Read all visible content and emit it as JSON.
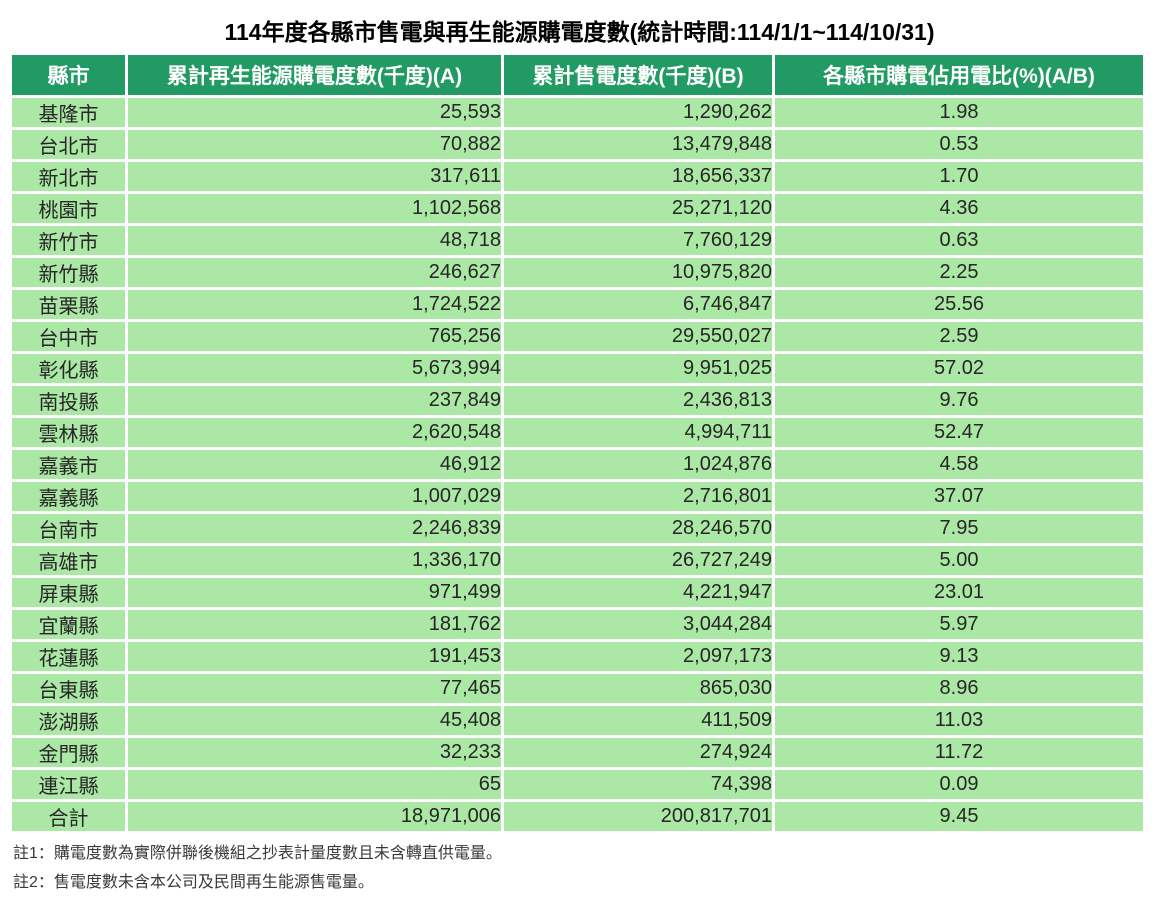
{
  "title": "114年度各縣市售電與再生能源購電度數(統計時間:114/1/1~114/10/31)",
  "table": {
    "headers": [
      "縣市",
      "累計再生能源購電度數(千度)(A)",
      "累計售電度數(千度)(B)",
      "各縣市購電佔用電比(%)(A/B)"
    ],
    "rows": [
      {
        "region": "基隆市",
        "renewable": "25,593",
        "sales": "1,290,262",
        "ratio": "1.98"
      },
      {
        "region": "台北市",
        "renewable": "70,882",
        "sales": "13,479,848",
        "ratio": "0.53"
      },
      {
        "region": "新北市",
        "renewable": "317,611",
        "sales": "18,656,337",
        "ratio": "1.70"
      },
      {
        "region": "桃園市",
        "renewable": "1,102,568",
        "sales": "25,271,120",
        "ratio": "4.36"
      },
      {
        "region": "新竹市",
        "renewable": "48,718",
        "sales": "7,760,129",
        "ratio": "0.63"
      },
      {
        "region": "新竹縣",
        "renewable": "246,627",
        "sales": "10,975,820",
        "ratio": "2.25"
      },
      {
        "region": "苗栗縣",
        "renewable": "1,724,522",
        "sales": "6,746,847",
        "ratio": "25.56"
      },
      {
        "region": "台中市",
        "renewable": "765,256",
        "sales": "29,550,027",
        "ratio": "2.59"
      },
      {
        "region": "彰化縣",
        "renewable": "5,673,994",
        "sales": "9,951,025",
        "ratio": "57.02"
      },
      {
        "region": "南投縣",
        "renewable": "237,849",
        "sales": "2,436,813",
        "ratio": "9.76"
      },
      {
        "region": "雲林縣",
        "renewable": "2,620,548",
        "sales": "4,994,711",
        "ratio": "52.47"
      },
      {
        "region": "嘉義市",
        "renewable": "46,912",
        "sales": "1,024,876",
        "ratio": "4.58"
      },
      {
        "region": "嘉義縣",
        "renewable": "1,007,029",
        "sales": "2,716,801",
        "ratio": "37.07"
      },
      {
        "region": "台南市",
        "renewable": "2,246,839",
        "sales": "28,246,570",
        "ratio": "7.95"
      },
      {
        "region": "高雄市",
        "renewable": "1,336,170",
        "sales": "26,727,249",
        "ratio": "5.00"
      },
      {
        "region": "屏東縣",
        "renewable": "971,499",
        "sales": "4,221,947",
        "ratio": "23.01"
      },
      {
        "region": "宜蘭縣",
        "renewable": "181,762",
        "sales": "3,044,284",
        "ratio": "5.97"
      },
      {
        "region": "花蓮縣",
        "renewable": "191,453",
        "sales": "2,097,173",
        "ratio": "9.13"
      },
      {
        "region": "台東縣",
        "renewable": "77,465",
        "sales": "865,030",
        "ratio": "8.96"
      },
      {
        "region": "澎湖縣",
        "renewable": "45,408",
        "sales": "411,509",
        "ratio": "11.03"
      },
      {
        "region": "金門縣",
        "renewable": "32,233",
        "sales": "274,924",
        "ratio": "11.72"
      },
      {
        "region": "連江縣",
        "renewable": "65",
        "sales": "74,398",
        "ratio": "0.09"
      }
    ],
    "total": {
      "region": "合計",
      "renewable": "18,971,006",
      "sales": "200,817,701",
      "ratio": "9.45"
    }
  },
  "notes": [
    "註1：購電度數為實際併聯後機組之抄表計量度數且未含轉直供電量。",
    "註2：售電度數未含本公司及民間再生能源售電量。"
  ],
  "colors": {
    "header_bg": "#229a63",
    "header_text": "#ffffff",
    "cell_bg": "#abe7a5",
    "cell_text": "#262626",
    "page_bg": "#ffffff"
  },
  "chart_data": {
    "type": "table",
    "title": "114年度各縣市售電與再生能源購電度數(統計時間:114/1/1~114/10/31)",
    "columns": [
      "縣市",
      "累計再生能源購電度數(千度)(A)",
      "累計售電度數(千度)(B)",
      "各縣市購電佔用電比(%)(A/B)"
    ],
    "rows": [
      [
        "基隆市",
        25593,
        1290262,
        1.98
      ],
      [
        "台北市",
        70882,
        13479848,
        0.53
      ],
      [
        "新北市",
        317611,
        18656337,
        1.7
      ],
      [
        "桃園市",
        1102568,
        25271120,
        4.36
      ],
      [
        "新竹市",
        48718,
        7760129,
        0.63
      ],
      [
        "新竹縣",
        246627,
        10975820,
        2.25
      ],
      [
        "苗栗縣",
        1724522,
        6746847,
        25.56
      ],
      [
        "台中市",
        765256,
        29550027,
        2.59
      ],
      [
        "彰化縣",
        5673994,
        9951025,
        57.02
      ],
      [
        "南投縣",
        237849,
        2436813,
        9.76
      ],
      [
        "雲林縣",
        2620548,
        4994711,
        52.47
      ],
      [
        "嘉義市",
        46912,
        1024876,
        4.58
      ],
      [
        "嘉義縣",
        1007029,
        2716801,
        37.07
      ],
      [
        "台南市",
        2246839,
        28246570,
        7.95
      ],
      [
        "高雄市",
        1336170,
        26727249,
        5.0
      ],
      [
        "屏東縣",
        971499,
        4221947,
        23.01
      ],
      [
        "宜蘭縣",
        181762,
        3044284,
        5.97
      ],
      [
        "花蓮縣",
        191453,
        2097173,
        9.13
      ],
      [
        "台東縣",
        77465,
        865030,
        8.96
      ],
      [
        "澎湖縣",
        45408,
        411509,
        11.03
      ],
      [
        "金門縣",
        32233,
        274924,
        11.72
      ],
      [
        "連江縣",
        65,
        74398,
        0.09
      ]
    ],
    "total": [
      "合計",
      18971006,
      200817701,
      9.45
    ],
    "notes": [
      "註1：購電度數為實際併聯後機組之抄表計量度數且未含轉直供電量。",
      "註2：售電度數未含本公司及民間再生能源售電量。"
    ]
  }
}
